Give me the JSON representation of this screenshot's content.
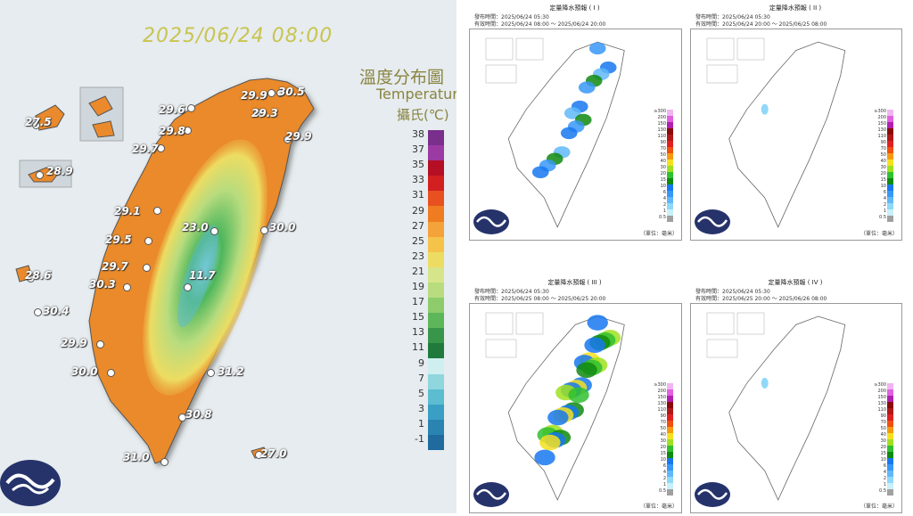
{
  "temperature_map": {
    "title": "2025/06/24 08:00",
    "legend_title_zh": "溫度分布圖",
    "legend_title_en": "Temperature",
    "legend_unit": "攝氏(℃)",
    "scale_labels": [
      "38",
      "37",
      "35",
      "33",
      "31",
      "29",
      "27",
      "25",
      "23",
      "21",
      "19",
      "17",
      "15",
      "13",
      "11",
      "9",
      "7",
      "5",
      "3",
      "1",
      "-1"
    ],
    "scale_colors": [
      "#7a2f8c",
      "#9c3aa3",
      "#b40f24",
      "#d21f1f",
      "#e8501f",
      "#f07c22",
      "#f4a23a",
      "#f5c34a",
      "#eddc62",
      "#d7e58a",
      "#b8dc7e",
      "#8ecc6b",
      "#5eb65a",
      "#38964a",
      "#1f7a3c",
      "#cfeef0",
      "#8fd6dd",
      "#5cbcd0",
      "#3a9fc4",
      "#2a84b2",
      "#1f6a9e"
    ],
    "stations": [
      {
        "label": "29.9"
      },
      {
        "label": "30.5"
      },
      {
        "label": "29.6"
      },
      {
        "label": "29.3"
      },
      {
        "label": "27.5"
      },
      {
        "label": "29.8"
      },
      {
        "label": "29.9"
      },
      {
        "label": "29.7"
      },
      {
        "label": "28.9"
      },
      {
        "label": "29.1"
      },
      {
        "label": "23.0"
      },
      {
        "label": "30.0"
      },
      {
        "label": "29.5"
      },
      {
        "label": "28.6"
      },
      {
        "label": "29.7"
      },
      {
        "label": "30.3"
      },
      {
        "label": "11.7"
      },
      {
        "label": "30.4"
      },
      {
        "label": "29.9"
      },
      {
        "label": "30.0"
      },
      {
        "label": "31.2"
      },
      {
        "label": "30.8"
      },
      {
        "label": "31.0"
      },
      {
        "label": "27.0"
      }
    ]
  },
  "rain_panels": [
    {
      "title": "定量降水預報 ( I )",
      "issue": "發布時間：2025/06/24 05:30",
      "valid": "有效時間：2025/06/24 08:00 ～ 2025/06/24 20:00",
      "unit": "（單位：毫米）",
      "intensity": 0.55
    },
    {
      "title": "定量降水預報 ( II )",
      "issue": "發布時間：2025/06/24 05:30",
      "valid": "有效時間：2025/06/24 20:00 ～ 2025/06/25 08:00",
      "unit": "（單位：毫米）",
      "intensity": 0.02
    },
    {
      "title": "定量降水預報 ( III )",
      "issue": "發布時間：2025/06/24 05:30",
      "valid": "有效時間：2025/06/25 08:00 ～ 2025/06/25 20:00",
      "unit": "（單位：毫米）",
      "intensity": 0.95
    },
    {
      "title": "定量降水預報 ( IV )",
      "issue": "發布時間：2025/06/24 05:30",
      "valid": "有效時間：2025/06/25 20:00 ～ 2025/06/26 08:00",
      "unit": "（單位：毫米）",
      "intensity": 0.04
    }
  ],
  "rain_scale": {
    "labels": [
      "≥300",
      "200",
      "150",
      "130",
      "110",
      "90",
      "70",
      "50",
      "40",
      "30",
      "20",
      "15",
      "10",
      "6",
      "4",
      "2",
      "1",
      "0.5"
    ],
    "colors": [
      "#f0b4f0",
      "#e060e0",
      "#b020b0",
      "#8a0a0a",
      "#b01818",
      "#e02020",
      "#f05010",
      "#f59a10",
      "#f5e020",
      "#a0e020",
      "#30c030",
      "#108a10",
      "#1878f0",
      "#3898f8",
      "#60b8f8",
      "#90d8f8",
      "#c8f0f8",
      "#a0a0a0"
    ]
  }
}
